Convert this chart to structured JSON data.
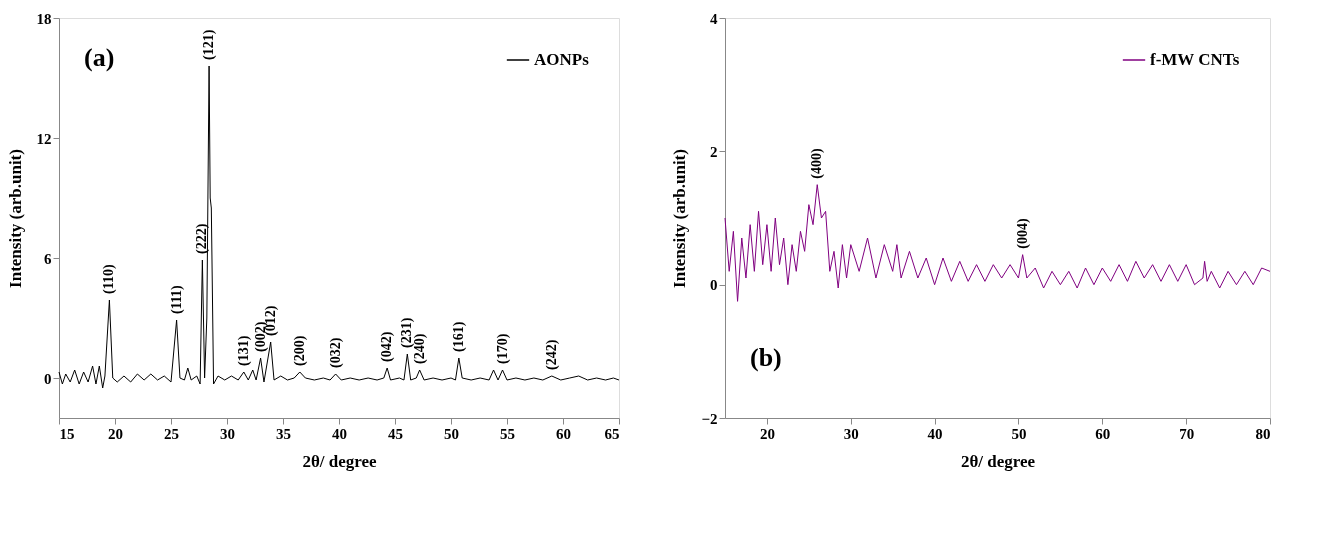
{
  "chart_data": [
    {
      "type": "line",
      "xlabel": "2θ/ degree",
      "ylabel": "Intensity (arb.unit)",
      "xlim": [
        15,
        65
      ],
      "ylim": [
        -2,
        18
      ],
      "xticks": [
        15,
        20,
        25,
        30,
        35,
        40,
        45,
        50,
        55,
        60,
        65
      ],
      "yticks": [
        0,
        6,
        12,
        18
      ],
      "grid": false,
      "legend": "top right",
      "marker": "none",
      "line_style": "solid",
      "series": [
        {
          "name": "AONPs",
          "color": "#000000",
          "x": [
            15,
            15.3,
            15.6,
            16,
            16.4,
            16.8,
            17.2,
            17.6,
            18,
            18.3,
            18.6,
            18.9,
            19.1,
            19.5,
            19.8,
            20.2,
            20.8,
            21.4,
            22,
            22.6,
            23.2,
            23.8,
            24.4,
            25,
            25.5,
            25.8,
            26.2,
            26.5,
            26.8,
            27.3,
            27.6,
            27.8,
            28,
            28.2,
            28.4,
            28.5,
            28.6,
            28.8,
            29.2,
            29.8,
            30.4,
            31,
            31.5,
            31.9,
            32.3,
            32.6,
            33,
            33.3,
            33.9,
            34.2,
            34.8,
            35.4,
            36,
            36.5,
            37,
            37.8,
            38.6,
            39.2,
            39.7,
            40.2,
            41,
            41.8,
            42.6,
            43.4,
            44,
            44.3,
            44.6,
            45.4,
            45.8,
            46.1,
            46.4,
            46.9,
            47.2,
            47.6,
            48.4,
            49.2,
            50,
            50.4,
            50.7,
            51,
            51.8,
            52.6,
            53.4,
            53.8,
            54.2,
            54.6,
            55,
            55.8,
            56.6,
            57.4,
            58.2,
            59,
            59.8,
            60.6,
            61.4,
            62.2,
            63,
            63.8,
            64.5,
            65
          ],
          "values": [
            0.3,
            -0.3,
            0.2,
            -0.2,
            0.4,
            -0.3,
            0.3,
            -0.2,
            0.6,
            -0.3,
            0.6,
            -0.5,
            0.1,
            3.9,
            0.0,
            -0.2,
            0.1,
            -0.2,
            0.2,
            -0.1,
            0.2,
            -0.1,
            0.1,
            -0.2,
            2.9,
            0.0,
            -0.1,
            0.5,
            -0.1,
            0.1,
            -0.3,
            5.9,
            0.0,
            3.0,
            15.6,
            9.0,
            8.5,
            -0.3,
            0.1,
            -0.1,
            0.1,
            -0.1,
            0.3,
            -0.1,
            0.4,
            -0.1,
            1.0,
            -0.2,
            1.8,
            -0.1,
            0.1,
            -0.1,
            0.0,
            0.3,
            0.0,
            -0.1,
            0.0,
            -0.1,
            0.2,
            -0.1,
            0.0,
            -0.1,
            0.0,
            -0.1,
            0.0,
            0.5,
            -0.1,
            0.0,
            -0.1,
            1.2,
            -0.1,
            0.0,
            0.4,
            -0.1,
            0.0,
            -0.1,
            0.0,
            -0.1,
            1.0,
            0.0,
            -0.1,
            0.0,
            -0.1,
            0.4,
            -0.1,
            0.4,
            -0.1,
            0.0,
            -0.1,
            0.0,
            -0.1,
            0.1,
            -0.1,
            0.0,
            0.1,
            -0.1,
            0.0,
            -0.1,
            0.0,
            -0.1
          ]
        }
      ],
      "annotations": [
        "(a)",
        {
          "text": "(110)",
          "x": 19.5,
          "y": 3.9
        },
        {
          "text": "(111)",
          "x": 25.5,
          "y": 2.9
        },
        {
          "text": "(222)",
          "x": 27.8,
          "y": 5.9
        },
        {
          "text": "(121)",
          "x": 28.4,
          "y": 15.6
        },
        {
          "text": "(131)",
          "x": 31.5,
          "y": 0.3
        },
        {
          "text": "(002)",
          "x": 33,
          "y": 1.0
        },
        {
          "text": "(012)",
          "x": 33.9,
          "y": 1.8
        },
        {
          "text": "(200)",
          "x": 36.5,
          "y": 0.3
        },
        {
          "text": "(032)",
          "x": 39.7,
          "y": 0.2
        },
        {
          "text": "(042)",
          "x": 44.3,
          "y": 0.5
        },
        {
          "text": "(231)",
          "x": 46.1,
          "y": 1.2
        },
        {
          "text": "(240)",
          "x": 47.2,
          "y": 0.4
        },
        {
          "text": "(161)",
          "x": 50.7,
          "y": 1.0
        },
        {
          "text": "(170)",
          "x": 54.6,
          "y": 0.4
        },
        {
          "text": "(242)",
          "x": 59,
          "y": 0.1
        }
      ]
    },
    {
      "type": "line",
      "xlabel": "2θ/ degree",
      "ylabel": "Intensity (arb.unit)",
      "xlim": [
        15,
        80
      ],
      "ylim": [
        -2,
        4
      ],
      "xticks": [
        20,
        30,
        40,
        50,
        60,
        70,
        80
      ],
      "yticks": [
        -2,
        0,
        2,
        4
      ],
      "grid": false,
      "legend": "top right",
      "marker": "none",
      "line_style": "solid",
      "series": [
        {
          "name": "f-MW CNTs",
          "color": "#800080",
          "x": [
            15,
            15.5,
            16,
            16.5,
            17,
            17.5,
            18,
            18.5,
            19,
            19.5,
            20,
            20.5,
            21,
            21.5,
            22,
            22.5,
            23,
            23.5,
            24,
            24.5,
            25,
            25.5,
            26,
            26.5,
            27,
            27.5,
            28,
            28.5,
            29,
            29.5,
            30,
            31,
            32,
            33,
            34,
            35,
            35.5,
            36,
            37,
            38,
            39,
            40,
            41,
            42,
            43,
            44,
            45,
            46,
            47,
            48,
            49,
            50,
            50.5,
            51,
            52,
            53,
            54,
            55,
            56,
            57,
            58,
            59,
            60,
            61,
            62,
            63,
            64,
            65,
            66,
            67,
            68,
            69,
            70,
            71,
            72,
            72.2,
            72.5,
            73,
            74,
            75,
            76,
            77,
            78,
            79,
            80
          ],
          "values": [
            1.0,
            0.2,
            0.8,
            -0.25,
            0.7,
            0.1,
            0.9,
            0.2,
            1.1,
            0.3,
            0.9,
            0.2,
            1.0,
            0.3,
            0.7,
            0.0,
            0.6,
            0.2,
            0.8,
            0.5,
            1.2,
            0.9,
            1.5,
            1.0,
            1.1,
            0.2,
            0.5,
            -0.05,
            0.6,
            0.1,
            0.6,
            0.2,
            0.7,
            0.1,
            0.6,
            0.2,
            0.6,
            0.1,
            0.5,
            0.1,
            0.4,
            0.0,
            0.4,
            0.05,
            0.35,
            0.05,
            0.3,
            0.05,
            0.3,
            0.1,
            0.3,
            0.1,
            0.45,
            0.1,
            0.25,
            -0.05,
            0.2,
            0.0,
            0.2,
            -0.05,
            0.25,
            0.0,
            0.25,
            0.05,
            0.3,
            0.05,
            0.35,
            0.1,
            0.3,
            0.05,
            0.3,
            0.05,
            0.3,
            0.0,
            0.1,
            0.35,
            0.05,
            0.2,
            -0.05,
            0.2,
            0.0,
            0.2,
            0.0,
            0.25,
            0.2
          ]
        }
      ],
      "annotations": [
        "(b)",
        {
          "text": "(400)",
          "x": 26,
          "y": 1.5
        },
        {
          "text": "(004)",
          "x": 50.5,
          "y": 0.45
        }
      ]
    }
  ]
}
